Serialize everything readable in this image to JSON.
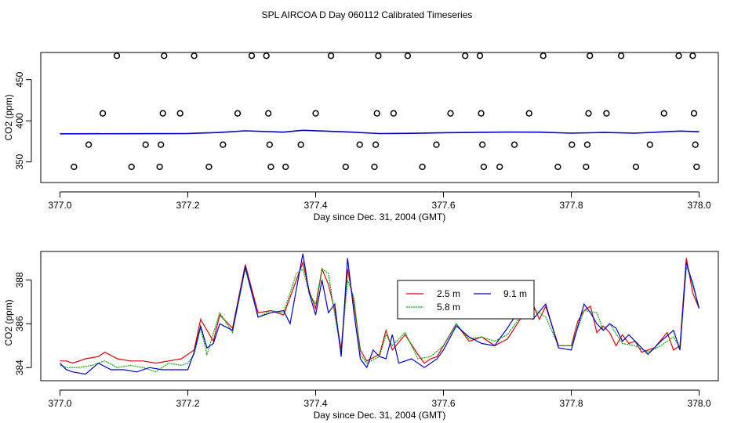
{
  "title": "SPL AIRCOA D  Day 060112  Calibrated Timeseries",
  "colors": {
    "red": "#dd0000",
    "green": "#00aa00",
    "blue": "#0000cc",
    "axis": "#000000"
  },
  "chart_data": [
    {
      "type": "scatter",
      "xlabel": "Day since Dec. 31, 2004 (GMT)",
      "ylabel": "CO2 (ppm)",
      "xlim": [
        376.97,
        378.03
      ],
      "ylim": [
        325,
        483
      ],
      "xticks": [
        "377.0",
        "377.2",
        "377.4",
        "377.6",
        "377.8",
        "378.0"
      ],
      "xtick_values": [
        377.0,
        377.2,
        377.4,
        377.6,
        377.8,
        378.0
      ],
      "yticks": [
        "350",
        "400",
        "450"
      ],
      "ytick_values": [
        350,
        400,
        450
      ],
      "line": {
        "x": [
          377.0,
          377.1,
          377.2,
          377.25,
          377.29,
          377.35,
          377.38,
          377.45,
          377.5,
          377.55,
          377.6,
          377.7,
          377.75,
          377.8,
          377.85,
          377.9,
          377.97,
          378.0
        ],
        "y": [
          384.2,
          384.3,
          384.6,
          385.8,
          387.8,
          386.2,
          388.5,
          386.5,
          384.5,
          384.8,
          385.5,
          386.3,
          386.2,
          385.0,
          385.8,
          385.0,
          387.5,
          386.8
        ]
      },
      "markers": [
        {
          "x": 377.022,
          "y": 344
        },
        {
          "x": 377.045,
          "y": 371
        },
        {
          "x": 377.067,
          "y": 409
        },
        {
          "x": 377.089,
          "y": 479
        },
        {
          "x": 377.112,
          "y": 344
        },
        {
          "x": 377.134,
          "y": 371
        },
        {
          "x": 377.156,
          "y": 344
        },
        {
          "x": 377.158,
          "y": 371
        },
        {
          "x": 377.161,
          "y": 409
        },
        {
          "x": 377.163,
          "y": 479
        },
        {
          "x": 377.188,
          "y": 409
        },
        {
          "x": 377.21,
          "y": 479
        },
        {
          "x": 377.233,
          "y": 344
        },
        {
          "x": 377.255,
          "y": 371
        },
        {
          "x": 377.278,
          "y": 409
        },
        {
          "x": 377.3,
          "y": 479
        },
        {
          "x": 377.323,
          "y": 479
        },
        {
          "x": 377.326,
          "y": 409
        },
        {
          "x": 377.328,
          "y": 371
        },
        {
          "x": 377.33,
          "y": 344
        },
        {
          "x": 377.353,
          "y": 344
        },
        {
          "x": 377.377,
          "y": 371
        },
        {
          "x": 377.4,
          "y": 409
        },
        {
          "x": 377.424,
          "y": 479
        },
        {
          "x": 377.447,
          "y": 344
        },
        {
          "x": 377.469,
          "y": 371
        },
        {
          "x": 377.492,
          "y": 344
        },
        {
          "x": 377.494,
          "y": 371
        },
        {
          "x": 377.496,
          "y": 409
        },
        {
          "x": 377.498,
          "y": 479
        },
        {
          "x": 377.522,
          "y": 409
        },
        {
          "x": 377.544,
          "y": 479
        },
        {
          "x": 377.567,
          "y": 344
        },
        {
          "x": 377.589,
          "y": 371
        },
        {
          "x": 377.611,
          "y": 409
        },
        {
          "x": 377.634,
          "y": 479
        },
        {
          "x": 377.657,
          "y": 479
        },
        {
          "x": 377.659,
          "y": 409
        },
        {
          "x": 377.661,
          "y": 371
        },
        {
          "x": 377.663,
          "y": 344
        },
        {
          "x": 377.688,
          "y": 344
        },
        {
          "x": 377.711,
          "y": 371
        },
        {
          "x": 377.734,
          "y": 409
        },
        {
          "x": 377.756,
          "y": 479
        },
        {
          "x": 377.779,
          "y": 344
        },
        {
          "x": 377.801,
          "y": 371
        },
        {
          "x": 377.823,
          "y": 344
        },
        {
          "x": 377.825,
          "y": 371
        },
        {
          "x": 377.827,
          "y": 409
        },
        {
          "x": 377.829,
          "y": 479
        },
        {
          "x": 377.855,
          "y": 409
        },
        {
          "x": 377.878,
          "y": 479
        },
        {
          "x": 377.901,
          "y": 344
        },
        {
          "x": 377.923,
          "y": 371
        },
        {
          "x": 377.945,
          "y": 409
        },
        {
          "x": 377.968,
          "y": 479
        },
        {
          "x": 377.99,
          "y": 479
        },
        {
          "x": 377.992,
          "y": 409
        },
        {
          "x": 377.994,
          "y": 371
        },
        {
          "x": 377.996,
          "y": 344
        }
      ]
    },
    {
      "type": "line",
      "xlabel": "Day since Dec. 31, 2004 (GMT)",
      "ylabel": "CO2 (ppm)",
      "xlim": [
        376.97,
        378.03
      ],
      "ylim": [
        383.4,
        389.3
      ],
      "xticks": [
        "377.0",
        "377.2",
        "377.4",
        "377.6",
        "377.8",
        "378.0"
      ],
      "xtick_values": [
        377.0,
        377.2,
        377.4,
        377.6,
        377.8,
        378.0
      ],
      "yticks": [
        "384",
        "386",
        "388"
      ],
      "ytick_values": [
        384,
        386,
        388
      ],
      "legend": {
        "position": "center-right",
        "entries": [
          {
            "label": "2.5 m",
            "color": "#dd0000"
          },
          {
            "label": "5.8 m",
            "color": "#00aa00"
          },
          {
            "label": "9.1 m",
            "color": "#0000cc"
          }
        ]
      },
      "series": [
        {
          "name": "2.5 m",
          "color": "#dd0000",
          "x": [
            377.0,
            377.01,
            377.02,
            377.04,
            377.06,
            377.07,
            377.09,
            377.11,
            377.13,
            377.15,
            377.17,
            377.19,
            377.2,
            377.21,
            377.22,
            377.24,
            377.25,
            377.27,
            377.29,
            377.31,
            377.33,
            377.35,
            377.37,
            377.38,
            377.39,
            377.4,
            377.41,
            377.42,
            377.43,
            377.44,
            377.45,
            377.46,
            377.47,
            377.48,
            377.5,
            377.51,
            377.52,
            377.54,
            377.56,
            377.57,
            377.58,
            377.59,
            377.6,
            377.62,
            377.64,
            377.66,
            377.68,
            377.7,
            377.72,
            377.74,
            377.75,
            377.76,
            377.78,
            377.8,
            377.81,
            377.82,
            377.83,
            377.84,
            377.85,
            377.86,
            377.87,
            377.88,
            377.89,
            377.9,
            377.91,
            377.93,
            377.95,
            377.96,
            377.97,
            377.98,
            377.99,
            378.0
          ],
          "y": [
            384.3,
            384.3,
            384.2,
            384.4,
            384.5,
            384.7,
            384.4,
            384.3,
            384.3,
            384.2,
            384.3,
            384.4,
            384.6,
            384.8,
            386.2,
            385.2,
            386.4,
            385.8,
            388.7,
            386.5,
            386.6,
            386.4,
            388.0,
            388.8,
            387.5,
            386.7,
            388.5,
            387.8,
            386.6,
            384.8,
            388.5,
            386.9,
            384.8,
            384.3,
            384.6,
            385.7,
            384.8,
            385.5,
            384.6,
            384.2,
            384.4,
            384.5,
            385.0,
            386.0,
            385.2,
            385.4,
            385.0,
            385.3,
            386.2,
            386.9,
            386.2,
            386.8,
            385.0,
            385.0,
            386.1,
            386.6,
            386.8,
            385.6,
            385.9,
            385.6,
            385.0,
            385.5,
            385.1,
            385.2,
            384.7,
            384.9,
            385.6,
            384.8,
            385.0,
            389.0,
            387.4,
            386.7
          ]
        },
        {
          "name": "5.8 m",
          "color": "#00aa00",
          "x": [
            377.0,
            377.01,
            377.03,
            377.05,
            377.07,
            377.09,
            377.11,
            377.13,
            377.15,
            377.17,
            377.19,
            377.2,
            377.21,
            377.22,
            377.23,
            377.25,
            377.27,
            377.29,
            377.31,
            377.33,
            377.35,
            377.37,
            377.38,
            377.39,
            377.4,
            377.41,
            377.42,
            377.43,
            377.44,
            377.45,
            377.46,
            377.47,
            377.48,
            377.5,
            377.51,
            377.52,
            377.54,
            377.56,
            377.58,
            377.6,
            377.62,
            377.64,
            377.66,
            377.68,
            377.7,
            377.72,
            377.74,
            377.76,
            377.78,
            377.8,
            377.82,
            377.84,
            377.85,
            377.86,
            377.88,
            377.9,
            377.92,
            377.94,
            377.96,
            377.97,
            377.98,
            377.99,
            378.0
          ],
          "y": [
            384.1,
            384.0,
            384.0,
            384.1,
            384.3,
            384.0,
            384.1,
            384.0,
            383.8,
            384.2,
            384.1,
            384.2,
            384.6,
            385.8,
            384.6,
            386.5,
            385.6,
            388.5,
            386.3,
            386.6,
            386.5,
            388.3,
            388.5,
            387.4,
            386.9,
            388.5,
            388.3,
            386.4,
            384.7,
            388.0,
            387.2,
            384.6,
            384.2,
            384.5,
            385.5,
            385.0,
            385.6,
            384.4,
            384.5,
            385.0,
            386.0,
            385.3,
            385.4,
            385.2,
            385.5,
            386.3,
            386.7,
            386.3,
            385.0,
            385.0,
            386.6,
            386.5,
            385.7,
            386.0,
            385.1,
            385.0,
            384.7,
            385.0,
            385.4,
            384.9,
            388.6,
            387.9,
            386.7
          ]
        },
        {
          "name": "9.1 m",
          "color": "#0000cc",
          "x": [
            377.0,
            377.01,
            377.02,
            377.04,
            377.06,
            377.08,
            377.1,
            377.12,
            377.14,
            377.16,
            377.18,
            377.2,
            377.21,
            377.22,
            377.23,
            377.24,
            377.25,
            377.27,
            377.29,
            377.31,
            377.33,
            377.35,
            377.36,
            377.38,
            377.39,
            377.4,
            377.41,
            377.42,
            377.43,
            377.44,
            377.45,
            377.46,
            377.47,
            377.48,
            377.49,
            377.5,
            377.51,
            377.52,
            377.53,
            377.55,
            377.57,
            377.59,
            377.6,
            377.62,
            377.64,
            377.66,
            377.68,
            377.7,
            377.72,
            377.74,
            377.76,
            377.78,
            377.8,
            377.82,
            377.83,
            377.84,
            377.85,
            377.86,
            377.87,
            377.88,
            377.89,
            377.9,
            377.92,
            377.94,
            377.96,
            377.97,
            377.98,
            377.99,
            378.0
          ],
          "y": [
            384.2,
            383.9,
            383.8,
            383.7,
            384.2,
            383.9,
            383.9,
            383.8,
            384.0,
            383.9,
            383.9,
            383.9,
            384.7,
            385.9,
            384.9,
            385.1,
            386.0,
            385.7,
            388.6,
            386.3,
            386.5,
            386.6,
            386.0,
            389.2,
            387.4,
            386.4,
            388.0,
            386.5,
            386.9,
            384.5,
            389.0,
            386.5,
            384.4,
            384.0,
            384.8,
            384.5,
            384.4,
            385.5,
            384.2,
            384.4,
            384.0,
            384.4,
            384.8,
            385.9,
            385.4,
            385.1,
            385.0,
            385.8,
            386.7,
            386.2,
            386.9,
            384.9,
            384.8,
            386.9,
            386.5,
            386.0,
            385.7,
            386.0,
            385.8,
            385.2,
            385.5,
            385.2,
            384.6,
            385.2,
            385.7,
            384.8,
            388.8,
            387.8,
            386.7
          ]
        }
      ]
    }
  ]
}
